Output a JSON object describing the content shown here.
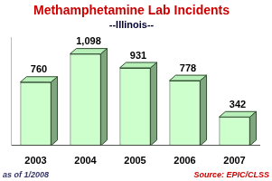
{
  "chart_data": {
    "type": "bar",
    "title": "Methamphetamine Lab Incidents",
    "subtitle": "--Illinois--",
    "categories": [
      "2003",
      "2004",
      "2005",
      "2006",
      "2007"
    ],
    "values": [
      760,
      1098,
      931,
      778,
      342
    ],
    "value_labels": [
      "760",
      "1,098",
      "931",
      "778",
      "342"
    ],
    "color": "#ccffcc",
    "ylim": [
      0,
      1300
    ],
    "grid": false,
    "data_labels": true,
    "tick_labels": "x",
    "annotations": [
      "as of 1/2008",
      "Source: EPIC/CLSS"
    ]
  }
}
